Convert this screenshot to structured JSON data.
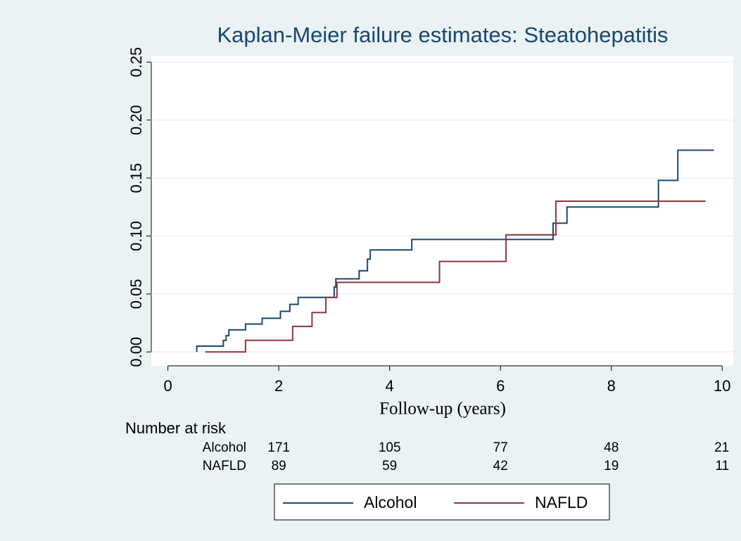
{
  "chart_data": {
    "type": "step",
    "title": "Kaplan-Meier failure estimates: Steatohepatitis",
    "x_label": "Follow-up (years)",
    "xlim": [
      -0.3,
      10.2
    ],
    "xticks": [
      0,
      2,
      4,
      6,
      8,
      10
    ],
    "ylim": [
      -0.012,
      0.255
    ],
    "yticks": [
      {
        "value": 0,
        "label": "0.00"
      },
      {
        "value": 0.05,
        "label": "0.05"
      },
      {
        "value": 0.1,
        "label": "0.10"
      },
      {
        "value": 0.15,
        "label": "0.15"
      },
      {
        "value": 0.2,
        "label": "0.20"
      },
      {
        "value": 0.25,
        "label": "0.25"
      }
    ],
    "grid": true,
    "series": [
      {
        "name": "Alcohol",
        "color": "#1a476f",
        "x": [
          0.52,
          0.52,
          1.0,
          1.05,
          1.1,
          1.4,
          1.7,
          2.03,
          2.2,
          2.35,
          3.0,
          3.03,
          3.45,
          3.6,
          3.65,
          4.4,
          6.95,
          7.2,
          8.85,
          9.2,
          9.85
        ],
        "values": [
          0,
          0.005,
          0.01,
          0.014,
          0.019,
          0.024,
          0.029,
          0.035,
          0.041,
          0.047,
          0.056,
          0.063,
          0.07,
          0.08,
          0.088,
          0.097,
          0.111,
          0.125,
          0.148,
          0.174,
          0.174
        ]
      },
      {
        "name": "NAFLD",
        "color": "#90353b",
        "x": [
          0.67,
          1.4,
          2.25,
          2.6,
          2.85,
          3.05,
          4.9,
          6.1,
          7.0,
          9.7
        ],
        "values": [
          0,
          0.01,
          0.022,
          0.034,
          0.047,
          0.06,
          0.078,
          0.101,
          0.13,
          0.13
        ]
      }
    ],
    "risk_table": {
      "title": "Number at risk",
      "rows": [
        {
          "label": "Alcohol",
          "values": [
            171,
            105,
            77,
            48,
            21
          ]
        },
        {
          "label": "NAFLD",
          "values": [
            89,
            59,
            42,
            19,
            11
          ]
        }
      ]
    }
  }
}
